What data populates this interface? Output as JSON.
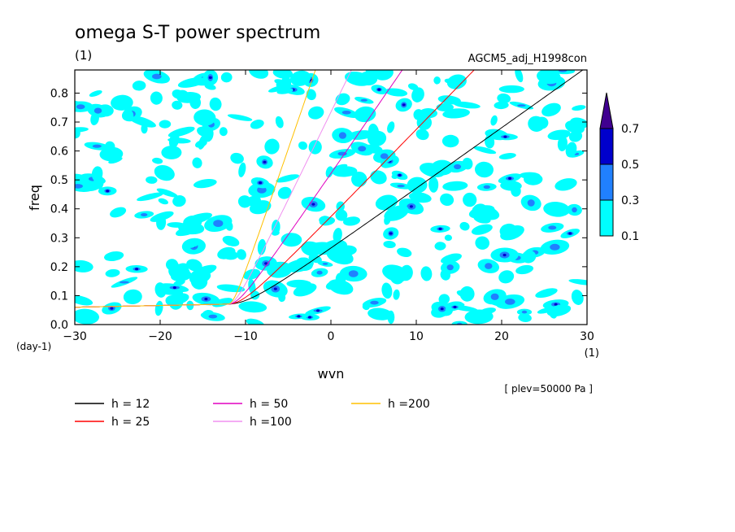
{
  "chart_data": {
    "type": "heatmap",
    "title": "omega S-T power spectrum",
    "subtitle": "(1)",
    "run_label": "AGCM5_adj_H1998con",
    "xlabel": "wvn",
    "ylabel": "freq",
    "x_unit": "(1)",
    "y_unit": "(day-1)",
    "xlim": [
      -30,
      30
    ],
    "ylim": [
      0,
      0.88
    ],
    "x_ticks": [
      -30,
      -20,
      -10,
      0,
      10,
      20,
      30
    ],
    "y_ticks": [
      0.0,
      0.1,
      0.2,
      0.3,
      0.4,
      0.5,
      0.6,
      0.7,
      0.8
    ],
    "annotation": "[ plev=50000 Pa ]",
    "colorbar": {
      "levels": [
        0.1,
        0.3,
        0.5,
        0.7
      ],
      "labels": [
        "0.1",
        "0.3",
        "0.5",
        "0.7"
      ],
      "colors": [
        "#00ffff",
        "#2080ff",
        "#0000cc",
        "#400090"
      ]
    },
    "series": [
      {
        "name": "h = 12",
        "h": 12,
        "color": "#000000"
      },
      {
        "name": "h = 25",
        "h": 25,
        "color": "#ff0000"
      },
      {
        "name": "h = 50",
        "h": 50,
        "color": "#e000c0"
      },
      {
        "name": "h =100",
        "h": 100,
        "color": "#f090f0"
      },
      {
        "name": "h =200",
        "h": 200,
        "color": "#ffc000"
      }
    ],
    "grid": false,
    "legend_position": "bottom"
  }
}
